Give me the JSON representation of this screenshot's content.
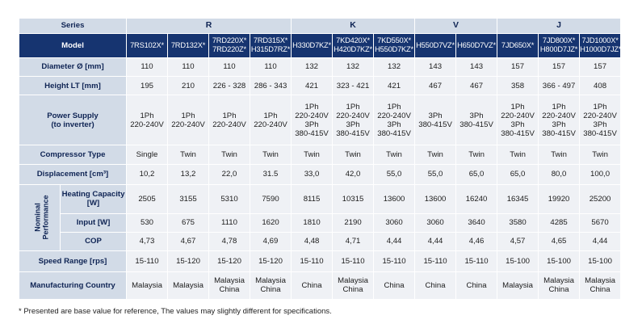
{
  "table": {
    "series_label": "Series",
    "series": [
      {
        "name": "R",
        "span": 4
      },
      {
        "name": "K",
        "span": 3
      },
      {
        "name": "V",
        "span": 2
      },
      {
        "name": "J",
        "span": 3
      }
    ],
    "model_label": "Model",
    "models": [
      "7RS102X*",
      "7RD132X*",
      "7RD220X*\n7RD220Z*",
      "7RD315X*\nH315D7RZ*",
      "H330D7KZ*",
      "7KD420X*\nH420D7KZ*",
      "7KD550X*\nH550D7KZ*",
      "H550D7VZ*",
      "H650D7VZ*",
      "7JD650X*",
      "7JD800X*\nH800D7JZ*",
      "7JD1000X*\nH1000D7JZ*"
    ],
    "nominal_label": "Nominal\nPerformance",
    "rows": [
      {
        "label": "Diameter Ø [mm]",
        "values": [
          "110",
          "110",
          "110",
          "110",
          "132",
          "132",
          "132",
          "143",
          "143",
          "157",
          "157",
          "157"
        ]
      },
      {
        "label": "Height LT [mm]",
        "values": [
          "195",
          "210",
          "226 - 328",
          "286 - 343",
          "421",
          "323 - 421",
          "421",
          "467",
          "467",
          "358",
          "366 - 497",
          "408"
        ]
      },
      {
        "label": "Power Supply\n(to inverter)",
        "values": [
          "1Ph\n220-240V",
          "1Ph\n220-240V",
          "1Ph\n220-240V",
          "1Ph\n220-240V",
          "1Ph\n220-240V\n3Ph\n380-415V",
          "1Ph\n220-240V\n3Ph\n380-415V",
          "1Ph\n220-240V\n3Ph\n380-415V",
          "3Ph\n380-415V",
          "3Ph\n380-415V",
          "1Ph\n220-240V\n3Ph\n380-415V",
          "1Ph\n220-240V\n3Ph\n380-415V",
          "1Ph\n220-240V\n3Ph\n380-415V"
        ]
      },
      {
        "label": "Compressor Type",
        "values": [
          "Single",
          "Twin",
          "Twin",
          "Twin",
          "Twin",
          "Twin",
          "Twin",
          "Twin",
          "Twin",
          "Twin",
          "Twin",
          "Twin"
        ]
      },
      {
        "label": "Displacement [cm³]",
        "values": [
          "10,2",
          "13,2",
          "22,0",
          "31.5",
          "33,0",
          "42,0",
          "55,0",
          "55,0",
          "65,0",
          "65,0",
          "80,0",
          "100,0"
        ]
      },
      {
        "label": "Heating Capacity\n[W]",
        "values": [
          "2505",
          "3155",
          "5310",
          "7590",
          "8115",
          "10315",
          "13600",
          "13600",
          "16240",
          "16345",
          "19920",
          "25200"
        ]
      },
      {
        "label": "Input [W]",
        "values": [
          "530",
          "675",
          "1110",
          "1620",
          "1810",
          "2190",
          "3060",
          "3060",
          "3640",
          "3580",
          "4285",
          "5670"
        ]
      },
      {
        "label": "COP",
        "values": [
          "4,73",
          "4,67",
          "4,78",
          "4,69",
          "4,48",
          "4,71",
          "4,44",
          "4,44",
          "4,46",
          "4,57",
          "4,65",
          "4,44"
        ]
      },
      {
        "label": "Speed Range [rps]",
        "values": [
          "15-110",
          "15-120",
          "15-120",
          "15-120",
          "15-110",
          "15-110",
          "15-110",
          "15-110",
          "15-110",
          "15-100",
          "15-100",
          "15-100"
        ]
      },
      {
        "label": "Manufacturing Country",
        "values": [
          "Malaysia",
          "Malaysia",
          "Malaysia\nChina",
          "Malaysia\nChina",
          "China",
          "Malaysia\nChina",
          "China",
          "China",
          "China",
          "Malaysia",
          "Malaysia\nChina",
          "Malaysia\nChina"
        ]
      }
    ]
  },
  "footnote": "* Presented are base value for reference, The values may slightly different for specifications."
}
